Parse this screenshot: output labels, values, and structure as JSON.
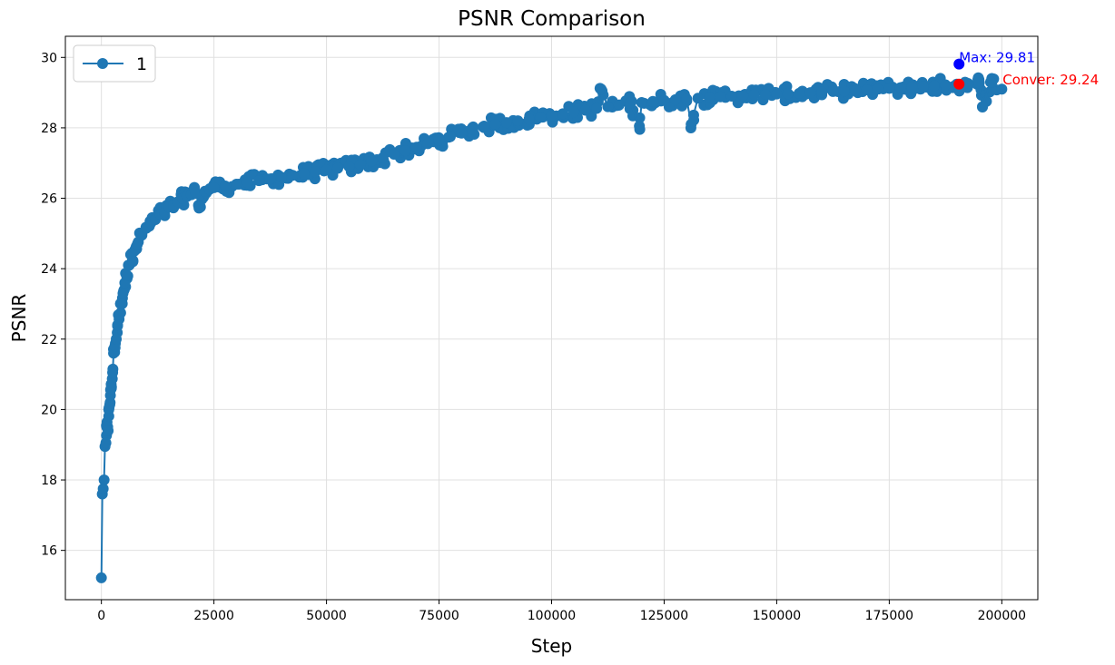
{
  "chart_data": {
    "type": "line",
    "title": "PSNR Comparison",
    "xlabel": "Step",
    "ylabel": "PSNR",
    "xlim": [
      -8000,
      208000
    ],
    "ylim": [
      14.6,
      30.6
    ],
    "xticks": [
      0,
      25000,
      50000,
      75000,
      100000,
      125000,
      150000,
      175000,
      200000
    ],
    "xtick_labels": [
      "0",
      "25000",
      "50000",
      "75000",
      "100000",
      "125000",
      "150000",
      "175000",
      "200000"
    ],
    "yticks": [
      16,
      18,
      20,
      22,
      24,
      26,
      28,
      30
    ],
    "ytick_labels": [
      "16",
      "18",
      "20",
      "22",
      "24",
      "26",
      "28",
      "30"
    ],
    "grid": true,
    "legend_position": "top-left",
    "series": [
      {
        "name": "1",
        "color": "#1f77b4",
        "marker": "circle",
        "points": [
          [
            0,
            15.22
          ],
          [
            200,
            17.6
          ],
          [
            400,
            17.75
          ],
          [
            600,
            18.0
          ],
          [
            800,
            18.95
          ],
          [
            1000,
            19.05
          ],
          [
            1200,
            19.5
          ],
          [
            1500,
            19.4
          ],
          [
            1700,
            20.05
          ],
          [
            2000,
            20.4
          ],
          [
            2200,
            20.6
          ],
          [
            2500,
            21.05
          ],
          [
            2700,
            21.6
          ],
          [
            3000,
            21.8
          ],
          [
            3300,
            22.0
          ],
          [
            3600,
            22.4
          ],
          [
            4000,
            22.7
          ],
          [
            4400,
            23.0
          ],
          [
            4800,
            23.3
          ],
          [
            5200,
            23.6
          ],
          [
            5600,
            23.8
          ],
          [
            6000,
            24.1
          ],
          [
            6500,
            24.4
          ],
          [
            7000,
            24.2
          ],
          [
            7500,
            24.55
          ],
          [
            8000,
            24.7
          ],
          [
            9000,
            24.95
          ],
          [
            10000,
            25.15
          ],
          [
            11000,
            25.3
          ],
          [
            12000,
            25.4
          ],
          [
            13000,
            25.55
          ],
          [
            14000,
            25.6
          ],
          [
            15000,
            25.75
          ],
          [
            16000,
            25.8
          ],
          [
            17000,
            25.9
          ],
          [
            18000,
            26.0
          ],
          [
            19000,
            26.05
          ],
          [
            20000,
            26.1
          ],
          [
            21000,
            26.15
          ],
          [
            22000,
            25.75
          ],
          [
            23000,
            26.2
          ],
          [
            24000,
            26.25
          ],
          [
            25000,
            26.3
          ],
          [
            27500,
            26.35
          ],
          [
            30000,
            26.4
          ],
          [
            32500,
            26.45
          ],
          [
            35000,
            26.5
          ],
          [
            37500,
            26.55
          ],
          [
            40000,
            26.6
          ],
          [
            42500,
            26.65
          ],
          [
            45000,
            26.7
          ],
          [
            47500,
            26.75
          ],
          [
            50000,
            26.8
          ],
          [
            52500,
            26.85
          ],
          [
            55000,
            26.9
          ],
          [
            57500,
            26.95
          ],
          [
            60000,
            27.05
          ],
          [
            62500,
            27.15
          ],
          [
            65000,
            27.25
          ],
          [
            67500,
            27.35
          ],
          [
            70000,
            27.45
          ],
          [
            72500,
            27.55
          ],
          [
            75000,
            27.65
          ],
          [
            77500,
            27.75
          ],
          [
            80000,
            27.85
          ],
          [
            82500,
            27.95
          ],
          [
            85000,
            28.05
          ],
          [
            87500,
            28.1
          ],
          [
            90000,
            28.15
          ],
          [
            92500,
            28.2
          ],
          [
            95000,
            28.25
          ],
          [
            97500,
            28.3
          ],
          [
            100000,
            28.35
          ],
          [
            102500,
            28.4
          ],
          [
            105000,
            28.45
          ],
          [
            107500,
            28.5
          ],
          [
            110000,
            28.55
          ],
          [
            111000,
            29.1
          ],
          [
            112500,
            28.6
          ],
          [
            115000,
            28.65
          ],
          [
            117500,
            28.7
          ],
          [
            119500,
            28.05
          ],
          [
            120000,
            28.72
          ],
          [
            122500,
            28.75
          ],
          [
            125000,
            28.78
          ],
          [
            127500,
            28.8
          ],
          [
            130000,
            28.82
          ],
          [
            131000,
            28.1
          ],
          [
            132500,
            28.84
          ],
          [
            135000,
            28.86
          ],
          [
            137500,
            28.88
          ],
          [
            140000,
            28.9
          ],
          [
            142500,
            28.92
          ],
          [
            145000,
            28.94
          ],
          [
            147500,
            28.95
          ],
          [
            150000,
            28.96
          ],
          [
            152500,
            28.97
          ],
          [
            155000,
            28.98
          ],
          [
            157500,
            29.0
          ],
          [
            160000,
            29.02
          ],
          [
            162500,
            29.03
          ],
          [
            165000,
            29.04
          ],
          [
            167500,
            29.06
          ],
          [
            170000,
            29.08
          ],
          [
            172500,
            29.1
          ],
          [
            175000,
            29.12
          ],
          [
            177500,
            29.14
          ],
          [
            180000,
            29.16
          ],
          [
            182500,
            29.18
          ],
          [
            185000,
            29.2
          ],
          [
            187500,
            29.22
          ],
          [
            190000,
            29.24
          ],
          [
            192500,
            29.26
          ],
          [
            195000,
            29.28
          ],
          [
            195700,
            28.6
          ],
          [
            197500,
            29.3
          ],
          [
            200000,
            29.1
          ]
        ]
      }
    ],
    "max_marker": {
      "x": 190500,
      "y": 29.81,
      "color": "#0000ff",
      "label": "Max: 29.81"
    },
    "conver_marker": {
      "x": 190500,
      "y": 29.24,
      "color": "#ff0000",
      "label": "Conver: 29.24"
    }
  }
}
